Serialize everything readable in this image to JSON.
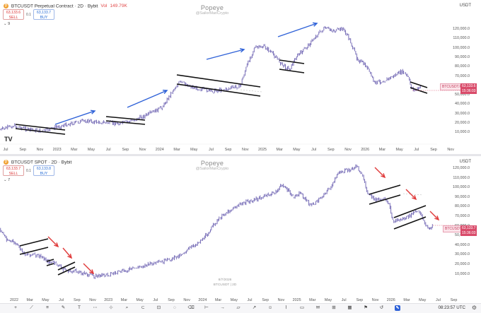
{
  "pane1": {
    "symbol_title": "BTCUSDT Perpetual Contract · 2D · Bybit",
    "volume_label": "Vol",
    "volume_value": "149.79K",
    "sell_price": "63,133.6",
    "sell_label": "SELL",
    "spread": "0.1",
    "buy_price": "63,133.7",
    "buy_label": "BUY",
    "collapse_count": "9",
    "watermark_title": "Popeye",
    "watermark_handle": "@SailorManCrypto",
    "currency": "USDT",
    "price_labels": [
      "120,000.0",
      "110,000.0",
      "100,000.0",
      "90,000.0",
      "80,000.0",
      "70,000.0",
      "60,000.0",
      "50,000.0",
      "40,000.0",
      "30,000.0",
      "20,000.0",
      "10,000.0"
    ],
    "time_labels": [
      "Jul",
      "Sep",
      "Nov",
      "2023",
      "Mar",
      "May",
      "Jul",
      "Sep",
      "Nov",
      "2024",
      "Mar",
      "May",
      "Jul",
      "Sep",
      "Nov",
      "2025",
      "Mar",
      "May",
      "Jul",
      "Sep",
      "Nov",
      "2026",
      "Mar",
      "May",
      "Jul",
      "Sep",
      "Nov"
    ],
    "last_price_tag": "BTCUSDT.P",
    "last_price": "63,133.6",
    "countdown": "15:36:03",
    "logo": "TV"
  },
  "pane2": {
    "symbol_title": "BTCUSDT SPOT · 2D · Bybit",
    "sell_price": "63,133.7",
    "sell_label": "SELL",
    "spread": "0.1",
    "buy_price": "63,133.8",
    "buy_label": "BUY",
    "collapse_count": "7",
    "watermark_title": "Popeye",
    "watermark_handle": "@SailorManCrypto",
    "currency": "USDT",
    "price_labels": [
      "120,000.0",
      "110,000.0",
      "100,000.0",
      "90,000.0",
      "80,000.0",
      "70,000.0",
      "60,000.0",
      "50,000.0",
      "40,000.0",
      "30,000.0",
      "20,000.0",
      "10,000.0"
    ],
    "time_labels": [
      "2022",
      "Mar",
      "May",
      "Jul",
      "Sep",
      "Nov",
      "2023",
      "Mar",
      "May",
      "Jul",
      "Sep",
      "Nov",
      "2024",
      "Mar",
      "May",
      "Jul",
      "Sep",
      "Nov",
      "2025",
      "Mar",
      "May",
      "Jul",
      "Sep",
      "Nov",
      "2026",
      "Mar",
      "May",
      "Jul",
      "Sep"
    ],
    "last_price_tag": "BTCUSDT",
    "last_price": "63,133.7",
    "countdown": "15:36:03",
    "stamp_date": "8/7/2026",
    "stamp_symbol": "BTCUSDT | 2D"
  },
  "status": {
    "clock": "08:23:57 UTC"
  },
  "colors": {
    "candle": "#6a5fb0",
    "channel": "#111111",
    "trend_arrow": "#2f62d8",
    "down_arrow": "#e03a3a",
    "price_tag": "#d94b6a"
  }
}
